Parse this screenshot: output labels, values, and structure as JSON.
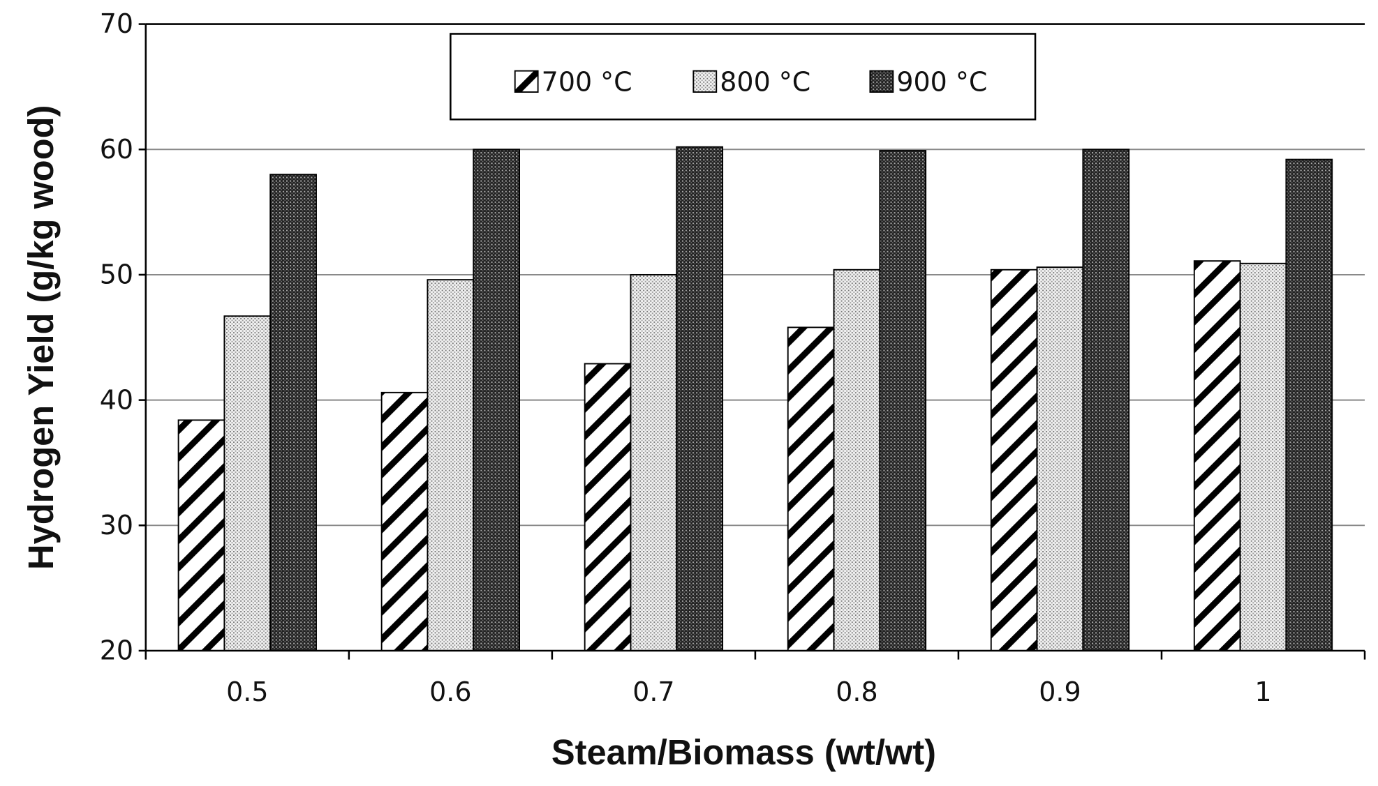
{
  "chart_data": {
    "type": "bar",
    "title": "",
    "xlabel": "Steam/Biomass (wt/wt)",
    "ylabel": "Hydrogen Yield (g/kg wood)",
    "ylim": [
      20,
      70
    ],
    "yticks": [
      "20",
      "30",
      "40",
      "50",
      "60",
      "70"
    ],
    "categories": [
      "0.5",
      "0.6",
      "0.7",
      "0.8",
      "0.9",
      "1"
    ],
    "grid": "horizontal",
    "legend_position": "top-center",
    "series": [
      {
        "name": "700 °C",
        "pattern": "diagonal-hatch",
        "values": [
          38.4,
          40.6,
          42.9,
          45.8,
          50.4,
          51.1
        ]
      },
      {
        "name": "800 °C",
        "pattern": "light-dots",
        "values": [
          46.7,
          49.6,
          50.0,
          50.4,
          50.6,
          50.9
        ]
      },
      {
        "name": "900 °C",
        "pattern": "dark-dots",
        "values": [
          58.0,
          60.0,
          60.2,
          59.9,
          60.0,
          59.2
        ]
      }
    ]
  }
}
